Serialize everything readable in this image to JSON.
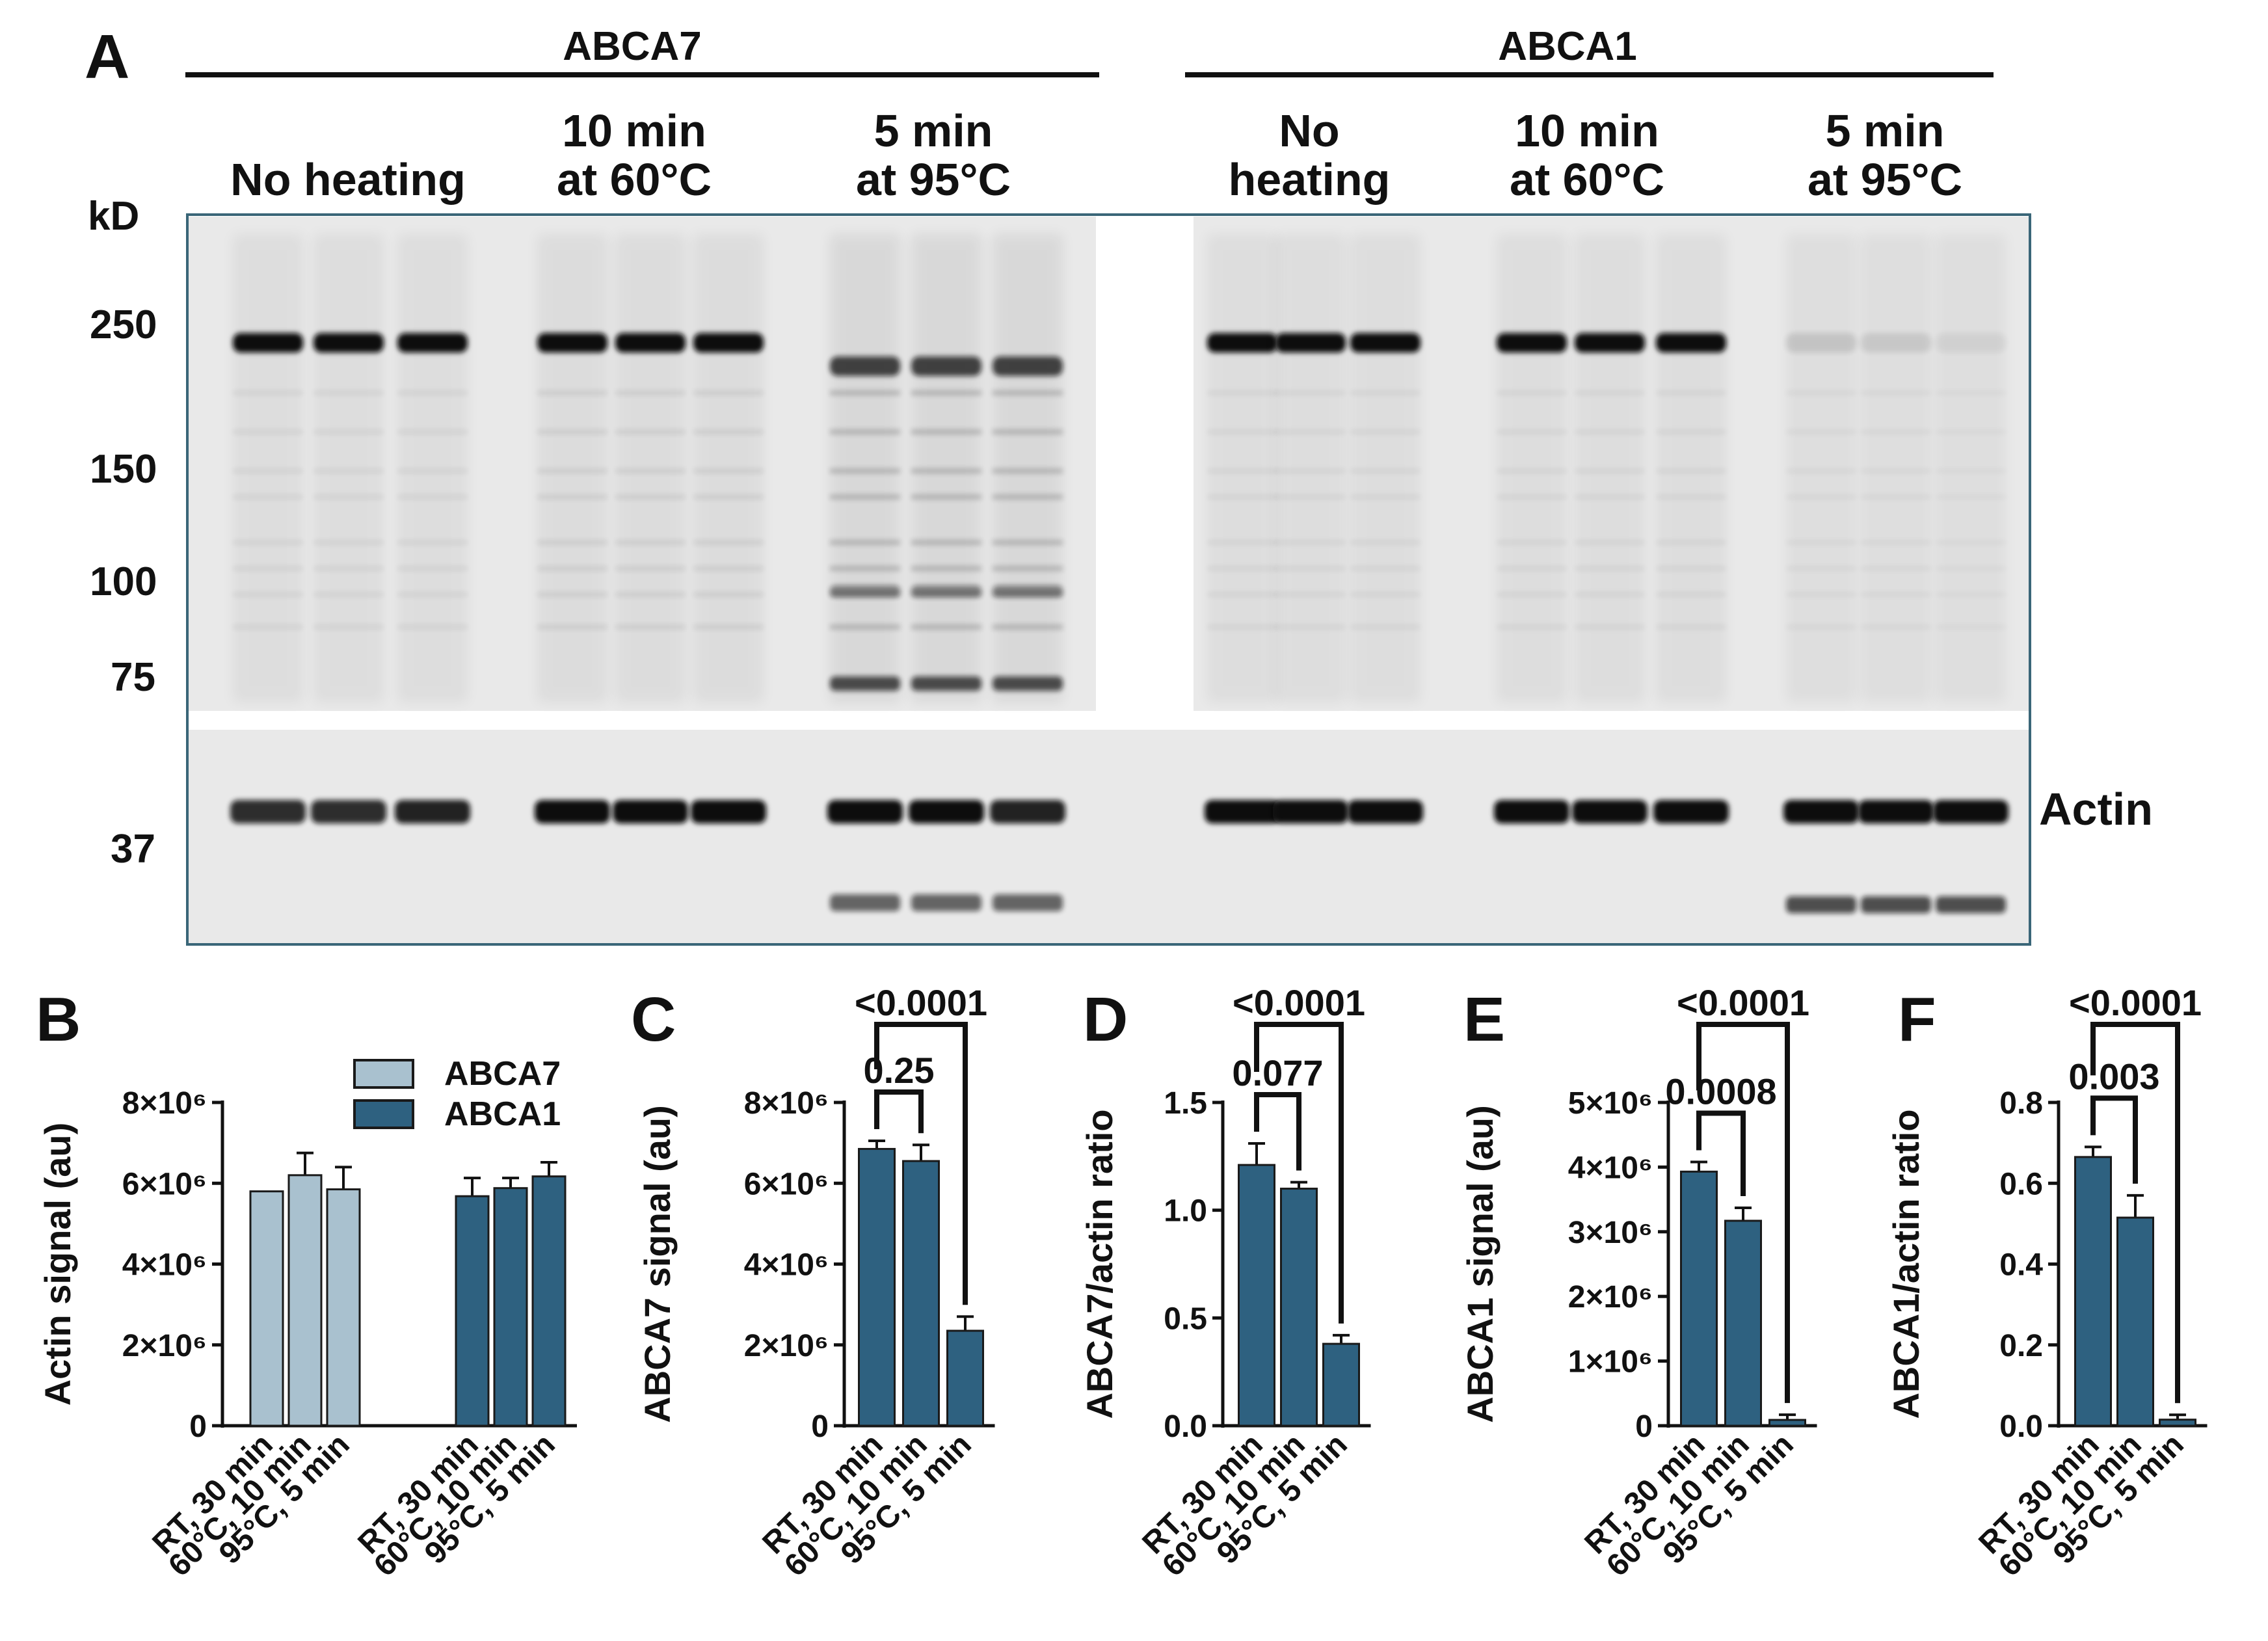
{
  "panel_a": {
    "letter": "A",
    "groups": [
      {
        "label": "ABCA7",
        "conditions": [
          [
            "No heating"
          ],
          [
            "10 min",
            "at 60°C"
          ],
          [
            "5 min",
            "at 95°C"
          ]
        ]
      },
      {
        "label": "ABCA1",
        "conditions": [
          [
            "No",
            "heating"
          ],
          [
            "10 min",
            "at 60°C"
          ],
          [
            "5 min",
            "at 95°C"
          ]
        ]
      }
    ],
    "mw_unit": "kD",
    "mw_markers": [
      "250",
      "150",
      "100",
      "75",
      "37"
    ],
    "actin_label": "Actin"
  },
  "colors": {
    "abca7": "#a9c1cf",
    "abca1": "#2e6180",
    "bar_edge": "#1a1a1a",
    "blot_bg": "#e9e9e9",
    "blot_frame": "#3a6678"
  },
  "chart_data": [
    {
      "panel": "B",
      "type": "bar",
      "categories": [
        "RT, 30 min",
        "60°C, 10 min",
        "95°C, 5 min",
        "RT, 30 min",
        "60°C, 10 min",
        "95°C, 5 min"
      ],
      "series": [
        {
          "name": "ABCA7",
          "values": [
            5800000,
            6200000,
            5850000,
            null,
            null,
            null
          ],
          "errors": [
            0,
            550000,
            550000,
            null,
            null,
            null
          ]
        },
        {
          "name": "ABCA1",
          "values": [
            null,
            null,
            null,
            5680000,
            5880000,
            6170000
          ],
          "errors": [
            null,
            null,
            null,
            450000,
            250000,
            350000
          ]
        }
      ],
      "ylabel": "Actin signal (au)",
      "ylim": [
        0,
        8000000
      ],
      "yticks": [
        {
          "value": 0,
          "label": "0"
        },
        {
          "value": 2000000,
          "label": "2×10⁶"
        },
        {
          "value": 4000000,
          "label": "4×10⁶"
        },
        {
          "value": 6000000,
          "label": "6×10⁶"
        },
        {
          "value": 8000000,
          "label": "8×10⁶"
        }
      ],
      "legend": "top-right",
      "comparisons": []
    },
    {
      "panel": "C",
      "type": "bar",
      "categories": [
        "RT, 30 min",
        "60°C, 10 min",
        "95°C, 5 min"
      ],
      "values": [
        6850000,
        6550000,
        2350000
      ],
      "errors": [
        200000,
        400000,
        350000
      ],
      "ylabel": "ABCA7 signal (au)",
      "ylim": [
        0,
        8000000
      ],
      "yticks": [
        {
          "value": 0,
          "label": "0"
        },
        {
          "value": 2000000,
          "label": "2×10⁶"
        },
        {
          "value": 4000000,
          "label": "4×10⁶"
        },
        {
          "value": 6000000,
          "label": "6×10⁶"
        },
        {
          "value": 8000000,
          "label": "8×10⁶"
        }
      ],
      "comparisons": [
        {
          "from": 0,
          "to": 1,
          "label": "0.25"
        },
        {
          "from": 0,
          "to": 2,
          "label": "<0.0001"
        }
      ]
    },
    {
      "panel": "D",
      "type": "bar",
      "categories": [
        "RT, 30 min",
        "60°C, 10 min",
        "95°C, 5 min"
      ],
      "values": [
        1.21,
        1.1,
        0.38
      ],
      "errors": [
        0.1,
        0.03,
        0.04
      ],
      "ylabel": "ABCA7/actin ratio",
      "ylim": [
        0,
        1.5
      ],
      "yticks": [
        {
          "value": 0,
          "label": "0.0"
        },
        {
          "value": 0.5,
          "label": "0.5"
        },
        {
          "value": 1.0,
          "label": "1.0"
        },
        {
          "value": 1.5,
          "label": "1.5"
        }
      ],
      "comparisons": [
        {
          "from": 0,
          "to": 1,
          "label": "0.077"
        },
        {
          "from": 0,
          "to": 2,
          "label": "<0.0001"
        }
      ]
    },
    {
      "panel": "E",
      "type": "bar",
      "categories": [
        "RT, 30 min",
        "60°C, 10 min",
        "95°C, 5 min"
      ],
      "values": [
        3930000,
        3170000,
        90000
      ],
      "errors": [
        150000,
        200000,
        80000
      ],
      "ylabel": "ABCA1 signal (au)",
      "ylim": [
        0,
        5000000
      ],
      "yticks": [
        {
          "value": 0,
          "label": "0"
        },
        {
          "value": 1000000,
          "label": "1×10⁶"
        },
        {
          "value": 2000000,
          "label": "2×10⁶"
        },
        {
          "value": 3000000,
          "label": "3×10⁶"
        },
        {
          "value": 4000000,
          "label": "4×10⁶"
        },
        {
          "value": 5000000,
          "label": "5×10⁶"
        }
      ],
      "comparisons": [
        {
          "from": 0,
          "to": 1,
          "label": "0.0008"
        },
        {
          "from": 0,
          "to": 2,
          "label": "<0.0001"
        }
      ]
    },
    {
      "panel": "F",
      "type": "bar",
      "categories": [
        "RT, 30 min",
        "60°C, 10 min",
        "95°C, 5 min"
      ],
      "values": [
        0.665,
        0.515,
        0.015
      ],
      "errors": [
        0.025,
        0.055,
        0.012
      ],
      "ylabel": "ABCA1/actin ratio",
      "ylim": [
        0,
        0.8
      ],
      "yticks": [
        {
          "value": 0,
          "label": "0.0"
        },
        {
          "value": 0.2,
          "label": "0.2"
        },
        {
          "value": 0.4,
          "label": "0.4"
        },
        {
          "value": 0.6,
          "label": "0.6"
        },
        {
          "value": 0.8,
          "label": "0.8"
        }
      ],
      "comparisons": [
        {
          "from": 0,
          "to": 1,
          "label": "0.003"
        },
        {
          "from": 0,
          "to": 2,
          "label": "<0.0001"
        }
      ]
    }
  ]
}
